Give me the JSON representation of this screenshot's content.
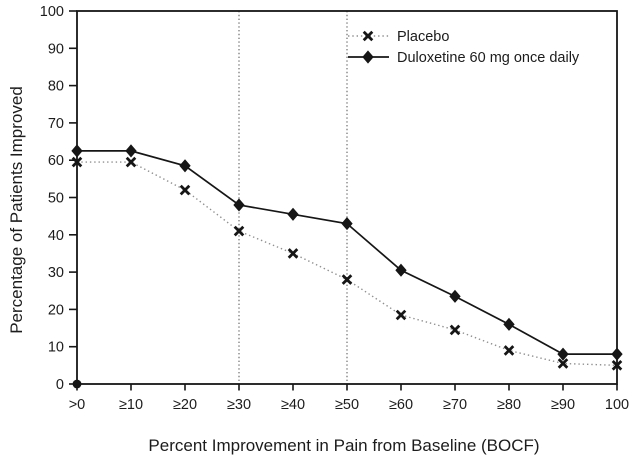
{
  "figure": {
    "description": "Line chart of percentage of patients improved versus percent improvement in pain from baseline"
  },
  "colors": {
    "ink": "#161616",
    "placebo_line": "#8f8f8f",
    "reference_line": "#6f6f6f",
    "background": "#ffffff"
  },
  "chart_data": {
    "type": "line",
    "title": "",
    "xlabel": "Percent Improvement in Pain from Baseline (BOCF)",
    "ylabel": "Percentage of Patients Improved",
    "categories": [
      ">0",
      "≥10",
      "≥20",
      "≥30",
      "≥40",
      "≥50",
      "≥60",
      "≥70",
      "≥80",
      "≥90",
      "100"
    ],
    "y_ticks": [
      0,
      10,
      20,
      30,
      40,
      50,
      60,
      70,
      80,
      90,
      100
    ],
    "ylim": [
      0,
      100
    ],
    "grid": "off",
    "legend_position": "top-right-inside",
    "reference_lines_x": [
      "≥30",
      "≥50"
    ],
    "origin_point": {
      "category": ">0",
      "value": 0
    },
    "series": [
      {
        "name": "Placebo",
        "marker": "x",
        "line_style": "dotted",
        "values": [
          59.5,
          59.5,
          52,
          41,
          35,
          28,
          18.5,
          14.5,
          9,
          5.5,
          5
        ]
      },
      {
        "name": "Duloxetine 60 mg once daily",
        "marker": "diamond",
        "line_style": "solid",
        "values": [
          62.5,
          62.5,
          58.5,
          48,
          45.5,
          43,
          30.5,
          23.5,
          16,
          8,
          8
        ]
      }
    ]
  }
}
